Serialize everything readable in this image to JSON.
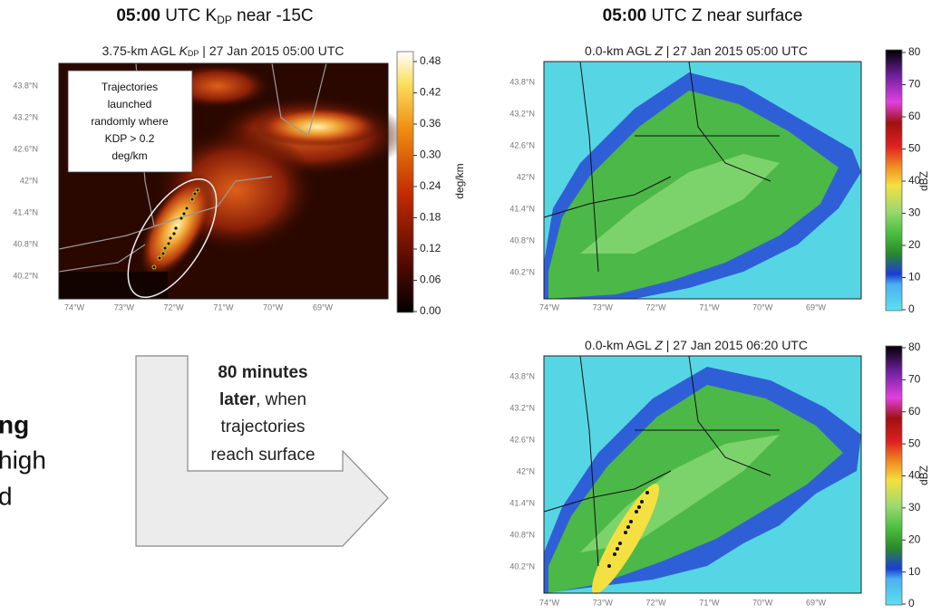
{
  "left_panel": {
    "title": {
      "bold": "05:00",
      "text": " UTC K",
      "sub": "DP",
      "rest": " near -15C"
    },
    "map": {
      "subtitle": {
        "pre": "3.75-km AGL ",
        "var": "K",
        "sub": "DP",
        "post": " | 27 Jan 2015 05:00 UTC"
      },
      "annotation": [
        "Trajectories",
        "launched",
        "randomly where",
        "KDP > 0.2",
        "deg/km"
      ],
      "lat_labels": [
        "43.8°N",
        "43.2°N",
        "42.6°N",
        "42°N",
        "41.4°N",
        "40.8°N",
        "40.2°N"
      ],
      "lon_labels": [
        "74°W",
        "73°W",
        "72°W",
        "71°W",
        "70°W",
        "69°W"
      ],
      "colorbar": {
        "label": "deg/km",
        "ticks": [
          "0.48",
          "0.42",
          "0.36",
          "0.30",
          "0.24",
          "0.18",
          "0.12",
          "0.06",
          "0.00"
        ]
      }
    }
  },
  "right_panel": {
    "title": {
      "bold": "05:00",
      "text": " UTC Z near surface"
    },
    "maps": [
      {
        "subtitle": {
          "pre": "0.0-km AGL ",
          "var": "Z",
          "post": " | 27 Jan 2015 05:00 UTC"
        },
        "lat_labels": [
          "43.8°N",
          "43.2°N",
          "42.6°N",
          "42°N",
          "41.4°N",
          "40.8°N",
          "40.2°N"
        ],
        "lon_labels": [
          "74°W",
          "73°W",
          "72°W",
          "71°W",
          "70°W",
          "69°W"
        ],
        "colorbar": {
          "label": "dBZ",
          "ticks": [
            80,
            70,
            60,
            50,
            40,
            30,
            20,
            10,
            0
          ]
        }
      },
      {
        "subtitle": {
          "pre": "0.0-km AGL ",
          "var": "Z",
          "post": " | 27 Jan 2015 06:20 UTC"
        },
        "lat_labels": [
          "43.8°N",
          "43.2°N",
          "42.6°N",
          "42°N",
          "41.4°N",
          "40.8°N",
          "40.2°N"
        ],
        "lon_labels": [
          "74°W",
          "73°W",
          "72°W",
          "71°W",
          "70°W",
          "69°W"
        ],
        "colorbar": {
          "label": "dBZ",
          "ticks": [
            80,
            70,
            60,
            50,
            40,
            30,
            20,
            10,
            0
          ]
        }
      }
    ]
  },
  "arrow_text": {
    "line1": "80 minutes",
    "line2_bold": "later",
    "line2": ", when",
    "line3": "trajectories",
    "line4": "reach surface"
  },
  "cut_text": [
    "ng",
    "high",
    "d"
  ]
}
